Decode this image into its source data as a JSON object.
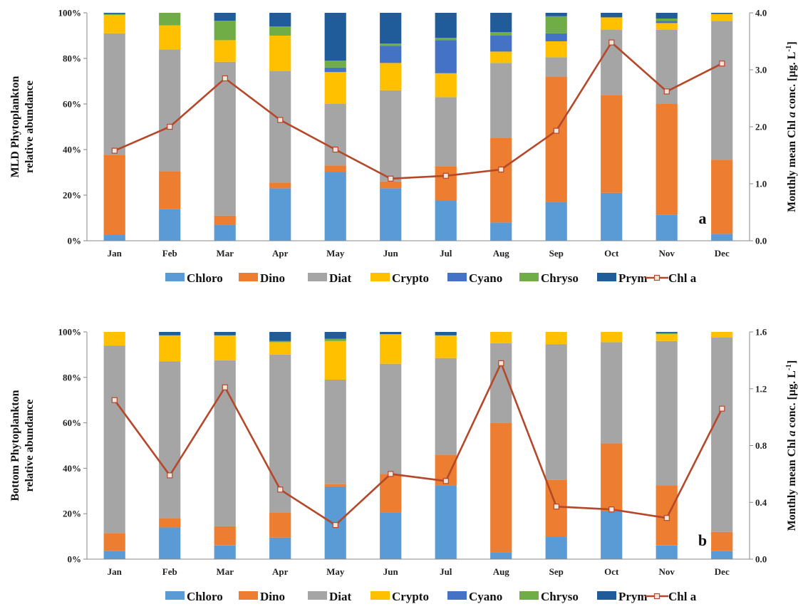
{
  "chart_data": [
    {
      "type": "bar",
      "stacked": true,
      "panel_label": "a",
      "categories": [
        "Jan",
        "Feb",
        "Mar",
        "Apr",
        "May",
        "Jun",
        "Jul",
        "Aug",
        "Sep",
        "Oct",
        "Nov",
        "Dec"
      ],
      "ylabel_lines": [
        "MLD Phytoplankton",
        "relative abundance"
      ],
      "y2label_parts": [
        "Monthly mean Chl ",
        "a",
        " conc. [µg. L",
        "-1",
        "]"
      ],
      "ylim": [
        0,
        100
      ],
      "yticks": [
        "0%",
        "20%",
        "40%",
        "60%",
        "80%",
        "100%"
      ],
      "y2lim": [
        0,
        4
      ],
      "y2ticks": [
        "0.0",
        "1.0",
        "2.0",
        "3.0",
        "4.0"
      ],
      "series": [
        {
          "name": "Chloro",
          "values": [
            2.5,
            14,
            7,
            23,
            30,
            23,
            17.5,
            8,
            17,
            21,
            11.5,
            3
          ]
        },
        {
          "name": "Dino",
          "values": [
            35,
            16.5,
            4,
            2.5,
            3,
            3,
            15,
            37,
            55,
            43,
            48.5,
            32.5
          ]
        },
        {
          "name": "Diat",
          "values": [
            53.5,
            53.5,
            67.5,
            49,
            27,
            40,
            30.5,
            33,
            8.5,
            28.5,
            32.5,
            61
          ]
        },
        {
          "name": "Crypto",
          "values": [
            8,
            10.5,
            9.5,
            15.5,
            14,
            12,
            10.5,
            5,
            7,
            5.5,
            3,
            3
          ]
        },
        {
          "name": "Cyano",
          "values": [
            0,
            0,
            0,
            0,
            2,
            7.5,
            14.5,
            7,
            3.5,
            0,
            1,
            0
          ]
        },
        {
          "name": "Chryso",
          "values": [
            0.5,
            5.5,
            8.5,
            4,
            3,
            1,
            1,
            1.5,
            7.5,
            0,
            1,
            0
          ]
        },
        {
          "name": "Prym",
          "values": [
            0.5,
            0,
            3.5,
            6,
            21,
            13.5,
            11,
            8.5,
            1.5,
            2,
            2.5,
            0.5
          ]
        }
      ],
      "line": {
        "name": "Chl a",
        "values": [
          1.58,
          2.0,
          2.85,
          2.12,
          1.6,
          1.09,
          1.14,
          1.25,
          1.93,
          3.48,
          2.62,
          3.11
        ]
      },
      "colors": {
        "Chloro": "#5b9bd5",
        "Dino": "#ed7d31",
        "Diat": "#a5a5a5",
        "Crypto": "#ffc000",
        "Cyano": "#4472c4",
        "Chryso": "#70ad47",
        "Prym": "#1f5c99",
        "Chl a": "#b5482a"
      },
      "legend": [
        "Chloro",
        "Dino",
        "Diat",
        "Crypto",
        "Cyano",
        "Chryso",
        "Prym",
        "Chl a"
      ],
      "legend_position": "bottom",
      "grid": false
    },
    {
      "type": "bar",
      "stacked": true,
      "panel_label": "b",
      "categories": [
        "Jan",
        "Feb",
        "Mar",
        "Apr",
        "May",
        "Jun",
        "Jul",
        "Aug",
        "Sep",
        "Oct",
        "Nov",
        "Dec"
      ],
      "ylabel_lines": [
        "Bottom Phytoplankton",
        "relative abundance"
      ],
      "y2label_parts": [
        "Monthly mean Chl ",
        "a",
        " conc. [µg. L",
        "-1",
        "]"
      ],
      "ylim": [
        0,
        100
      ],
      "yticks": [
        "0%",
        "20%",
        "40%",
        "60%",
        "80%",
        "100%"
      ],
      "y2lim": [
        0,
        1.6
      ],
      "y2ticks": [
        "0.0",
        "0.4",
        "0.8",
        "1.2",
        "1.6"
      ],
      "series": [
        {
          "name": "Chloro",
          "values": [
            3.5,
            14,
            6,
            9.5,
            32,
            20.5,
            32.5,
            3,
            10,
            21,
            6,
            3.5
          ]
        },
        {
          "name": "Dino",
          "values": [
            8,
            4,
            8.5,
            11,
            1,
            17,
            13.5,
            57,
            25,
            30,
            26.5,
            8.5
          ]
        },
        {
          "name": "Diat",
          "values": [
            82.5,
            69,
            73,
            69.5,
            46,
            48.5,
            42.5,
            35,
            59.5,
            44.5,
            63.5,
            85.5
          ]
        },
        {
          "name": "Crypto",
          "values": [
            6,
            11.5,
            11,
            5.5,
            17,
            13,
            10,
            5,
            5.5,
            4.5,
            3,
            2.5
          ]
        },
        {
          "name": "Cyano",
          "values": [
            0,
            0,
            0,
            0,
            0,
            0,
            0,
            0,
            0,
            0,
            0,
            0
          ]
        },
        {
          "name": "Chryso",
          "values": [
            0,
            0,
            0,
            0.5,
            1,
            0,
            0,
            0,
            0,
            0,
            0.5,
            0
          ]
        },
        {
          "name": "Prym",
          "values": [
            0,
            1.5,
            1.5,
            4,
            3,
            1,
            1.5,
            0,
            0,
            0,
            0.5,
            0
          ]
        }
      ],
      "line": {
        "name": "Chl a",
        "values": [
          1.12,
          0.59,
          1.21,
          0.49,
          0.24,
          0.6,
          0.55,
          1.38,
          0.37,
          0.35,
          0.29,
          1.06
        ]
      },
      "colors": {
        "Chloro": "#5b9bd5",
        "Dino": "#ed7d31",
        "Diat": "#a5a5a5",
        "Crypto": "#ffc000",
        "Cyano": "#4472c4",
        "Chryso": "#70ad47",
        "Prym": "#1f5c99",
        "Chl a": "#b5482a"
      },
      "legend": [
        "Chloro",
        "Dino",
        "Diat",
        "Crypto",
        "Cyano",
        "Chryso",
        "Prym",
        "Chl a"
      ],
      "legend_position": "bottom",
      "grid": false
    }
  ]
}
